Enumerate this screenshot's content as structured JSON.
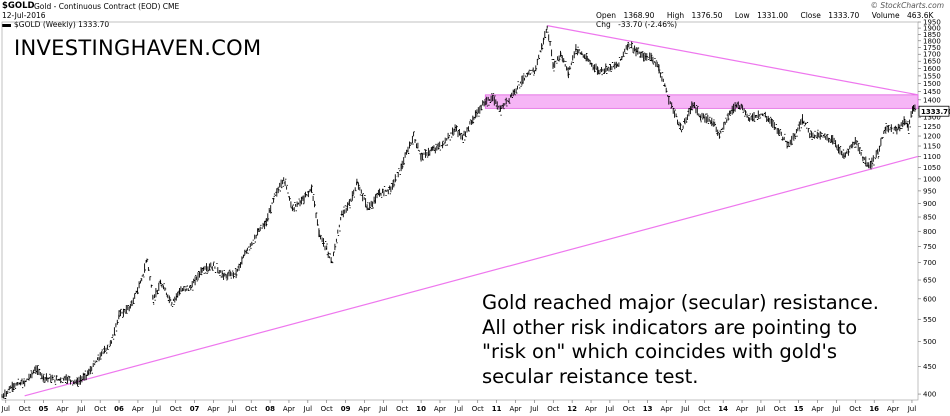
{
  "header": {
    "symbol": "$GOLD",
    "description": "Gold - Continuous Contract (EOD) CME",
    "date": "12-Jul-2016",
    "source": "© StockCharts.com",
    "open_label": "Open",
    "open": "1368.90",
    "high_label": "High",
    "high": "1376.50",
    "low_label": "Low",
    "low": "1331.00",
    "close_label": "Close",
    "close": "1333.70",
    "volume_label": "Volume",
    "volume": "463.6K",
    "chg_label": "Chg",
    "chg": "-33.70 (-2.46%)"
  },
  "legend": {
    "series_label": "$GOLD (Weekly) 1333.70"
  },
  "brand": "INVESTINGHAVEN.COM",
  "annotation": [
    "Gold reached major (secular) resistance.",
    "All other risk indicators are pointing to",
    "\"risk on\" which coincides with gold's",
    "secular reistance test."
  ],
  "price_tag": "1333.70",
  "colors": {
    "price": "#000000",
    "trendline": "#ee77ee",
    "resistance_band": "#f4a8f4",
    "resistance_border": "#e060e0"
  },
  "chart_data": {
    "type": "line",
    "log_scale": true,
    "ylim": [
      390,
      1950
    ],
    "yticks": [
      400,
      450,
      500,
      550,
      600,
      650,
      700,
      750,
      800,
      850,
      900,
      950,
      1000,
      1050,
      1100,
      1150,
      1200,
      1250,
      1300,
      1350,
      1400,
      1450,
      1500,
      1550,
      1600,
      1650,
      1700,
      1750,
      1800,
      1850,
      1900,
      1950
    ],
    "x_ticks": [
      {
        "t": 2004.5,
        "label": "Jul"
      },
      {
        "t": 2004.75,
        "label": "Oct"
      },
      {
        "t": 2005.0,
        "label": "05"
      },
      {
        "t": 2005.25,
        "label": "Apr"
      },
      {
        "t": 2005.5,
        "label": "Jul"
      },
      {
        "t": 2005.75,
        "label": "Oct"
      },
      {
        "t": 2006.0,
        "label": "06"
      },
      {
        "t": 2006.25,
        "label": "Apr"
      },
      {
        "t": 2006.5,
        "label": "Jul"
      },
      {
        "t": 2006.75,
        "label": "Oct"
      },
      {
        "t": 2007.0,
        "label": "07"
      },
      {
        "t": 2007.25,
        "label": "Apr"
      },
      {
        "t": 2007.5,
        "label": "Jul"
      },
      {
        "t": 2007.75,
        "label": "Oct"
      },
      {
        "t": 2008.0,
        "label": "08"
      },
      {
        "t": 2008.25,
        "label": "Apr"
      },
      {
        "t": 2008.5,
        "label": "Jul"
      },
      {
        "t": 2008.75,
        "label": "Oct"
      },
      {
        "t": 2009.0,
        "label": "09"
      },
      {
        "t": 2009.25,
        "label": "Apr"
      },
      {
        "t": 2009.5,
        "label": "Jul"
      },
      {
        "t": 2009.75,
        "label": "Oct"
      },
      {
        "t": 2010.0,
        "label": "10"
      },
      {
        "t": 2010.25,
        "label": "Apr"
      },
      {
        "t": 2010.5,
        "label": "Jul"
      },
      {
        "t": 2010.75,
        "label": "Oct"
      },
      {
        "t": 2011.0,
        "label": "11"
      },
      {
        "t": 2011.25,
        "label": "Apr"
      },
      {
        "t": 2011.5,
        "label": "Jul"
      },
      {
        "t": 2011.75,
        "label": "Oct"
      },
      {
        "t": 2012.0,
        "label": "12"
      },
      {
        "t": 2012.25,
        "label": "Apr"
      },
      {
        "t": 2012.5,
        "label": "Jul"
      },
      {
        "t": 2012.75,
        "label": "Oct"
      },
      {
        "t": 2013.0,
        "label": "13"
      },
      {
        "t": 2013.25,
        "label": "Apr"
      },
      {
        "t": 2013.5,
        "label": "Jul"
      },
      {
        "t": 2013.75,
        "label": "Oct"
      },
      {
        "t": 2014.0,
        "label": "14"
      },
      {
        "t": 2014.25,
        "label": "Apr"
      },
      {
        "t": 2014.5,
        "label": "Jul"
      },
      {
        "t": 2014.75,
        "label": "Oct"
      },
      {
        "t": 2015.0,
        "label": "15"
      },
      {
        "t": 2015.25,
        "label": "Apr"
      },
      {
        "t": 2015.5,
        "label": "Jul"
      },
      {
        "t": 2015.75,
        "label": "Oct"
      },
      {
        "t": 2016.0,
        "label": "16"
      },
      {
        "t": 2016.25,
        "label": "Apr"
      },
      {
        "t": 2016.5,
        "label": "Jul"
      }
    ],
    "xlim": [
      2004.45,
      2016.58
    ],
    "series": [
      {
        "points": [
          [
            2004.45,
            395
          ],
          [
            2004.6,
            415
          ],
          [
            2004.75,
            420
          ],
          [
            2004.9,
            445
          ],
          [
            2005.0,
            430
          ],
          [
            2005.15,
            425
          ],
          [
            2005.3,
            428
          ],
          [
            2005.45,
            420
          ],
          [
            2005.6,
            438
          ],
          [
            2005.75,
            470
          ],
          [
            2005.9,
            500
          ],
          [
            2006.0,
            560
          ],
          [
            2006.15,
            580
          ],
          [
            2006.3,
            650
          ],
          [
            2006.37,
            710
          ],
          [
            2006.45,
            600
          ],
          [
            2006.55,
            640
          ],
          [
            2006.7,
            590
          ],
          [
            2006.8,
            620
          ],
          [
            2006.95,
            630
          ],
          [
            2007.1,
            680
          ],
          [
            2007.25,
            690
          ],
          [
            2007.4,
            660
          ],
          [
            2007.55,
            670
          ],
          [
            2007.7,
            740
          ],
          [
            2007.85,
            800
          ],
          [
            2007.95,
            830
          ],
          [
            2008.05,
            920
          ],
          [
            2008.18,
            1000
          ],
          [
            2008.3,
            880
          ],
          [
            2008.45,
            920
          ],
          [
            2008.55,
            960
          ],
          [
            2008.65,
            790
          ],
          [
            2008.75,
            740
          ],
          [
            2008.82,
            700
          ],
          [
            2008.95,
            860
          ],
          [
            2009.05,
            900
          ],
          [
            2009.15,
            980
          ],
          [
            2009.3,
            880
          ],
          [
            2009.45,
            940
          ],
          [
            2009.6,
            960
          ],
          [
            2009.75,
            1060
          ],
          [
            2009.9,
            1200
          ],
          [
            2010.0,
            1100
          ],
          [
            2010.15,
            1130
          ],
          [
            2010.3,
            1160
          ],
          [
            2010.45,
            1240
          ],
          [
            2010.55,
            1190
          ],
          [
            2010.7,
            1300
          ],
          [
            2010.85,
            1390
          ],
          [
            2010.95,
            1410
          ],
          [
            2011.05,
            1340
          ],
          [
            2011.2,
            1430
          ],
          [
            2011.35,
            1530
          ],
          [
            2011.5,
            1580
          ],
          [
            2011.6,
            1760
          ],
          [
            2011.67,
            1900
          ],
          [
            2011.75,
            1620
          ],
          [
            2011.85,
            1700
          ],
          [
            2011.95,
            1570
          ],
          [
            2012.05,
            1740
          ],
          [
            2012.2,
            1660
          ],
          [
            2012.35,
            1580
          ],
          [
            2012.45,
            1600
          ],
          [
            2012.6,
            1620
          ],
          [
            2012.75,
            1780
          ],
          [
            2012.85,
            1720
          ],
          [
            2012.95,
            1680
          ],
          [
            2013.05,
            1680
          ],
          [
            2013.15,
            1600
          ],
          [
            2013.28,
            1400
          ],
          [
            2013.45,
            1230
          ],
          [
            2013.6,
            1380
          ],
          [
            2013.7,
            1300
          ],
          [
            2013.85,
            1280
          ],
          [
            2013.95,
            1210
          ],
          [
            2014.1,
            1330
          ],
          [
            2014.2,
            1380
          ],
          [
            2014.35,
            1290
          ],
          [
            2014.5,
            1320
          ],
          [
            2014.6,
            1290
          ],
          [
            2014.75,
            1220
          ],
          [
            2014.85,
            1160
          ],
          [
            2014.95,
            1200
          ],
          [
            2015.05,
            1290
          ],
          [
            2015.15,
            1210
          ],
          [
            2015.3,
            1200
          ],
          [
            2015.45,
            1180
          ],
          [
            2015.6,
            1100
          ],
          [
            2015.75,
            1170
          ],
          [
            2015.85,
            1090
          ],
          [
            2015.95,
            1060
          ],
          [
            2016.05,
            1120
          ],
          [
            2016.15,
            1240
          ],
          [
            2016.3,
            1230
          ],
          [
            2016.4,
            1280
          ],
          [
            2016.45,
            1240
          ],
          [
            2016.52,
            1360
          ],
          [
            2016.55,
            1333.7
          ]
        ]
      }
    ],
    "trendlines": [
      {
        "from": [
          2004.75,
          397
        ],
        "to": [
          2016.58,
          1100
        ]
      },
      {
        "from": [
          2011.67,
          1920
        ],
        "to": [
          2016.58,
          1430
        ]
      }
    ],
    "resistance_band": {
      "from_t": 2010.85,
      "to_t": 2016.58,
      "low": 1350,
      "high": 1430
    }
  }
}
